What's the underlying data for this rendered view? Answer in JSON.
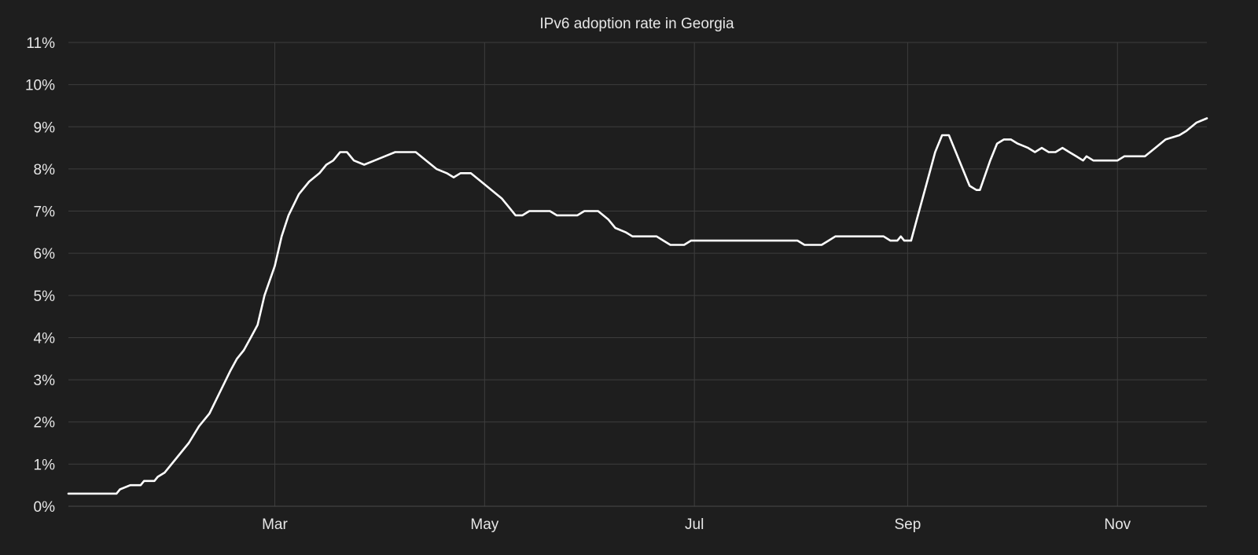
{
  "chart_data": {
    "type": "line",
    "title": "IPv6 adoption rate in Georgia",
    "xlabel": "",
    "ylabel": "",
    "grid": true,
    "legend": "none",
    "xlim": [
      "2024-01-01",
      "2024-11-27"
    ],
    "ylim": [
      0,
      11
    ],
    "x_ticks": [
      {
        "date": "2024-03-01",
        "label": "Mar"
      },
      {
        "date": "2024-05-01",
        "label": "May"
      },
      {
        "date": "2024-07-01",
        "label": "Jul"
      },
      {
        "date": "2024-09-01",
        "label": "Sep"
      },
      {
        "date": "2024-11-01",
        "label": "Nov"
      }
    ],
    "y_ticks": [
      {
        "value": 0,
        "label": "0%"
      },
      {
        "value": 1,
        "label": "1%"
      },
      {
        "value": 2,
        "label": "2%"
      },
      {
        "value": 3,
        "label": "3%"
      },
      {
        "value": 4,
        "label": "4%"
      },
      {
        "value": 5,
        "label": "5%"
      },
      {
        "value": 6,
        "label": "6%"
      },
      {
        "value": 7,
        "label": "7%"
      },
      {
        "value": 8,
        "label": "8%"
      },
      {
        "value": 9,
        "label": "9%"
      },
      {
        "value": 10,
        "label": "10%"
      },
      {
        "value": 11,
        "label": "11%"
      }
    ],
    "series": [
      {
        "color": "#ffffff",
        "points": [
          [
            "2024-01-01",
            0.3
          ],
          [
            "2024-01-15",
            0.3
          ],
          [
            "2024-01-16",
            0.4
          ],
          [
            "2024-01-19",
            0.5
          ],
          [
            "2024-01-22",
            0.5
          ],
          [
            "2024-01-23",
            0.6
          ],
          [
            "2024-01-26",
            0.6
          ],
          [
            "2024-01-27",
            0.7
          ],
          [
            "2024-01-29",
            0.8
          ],
          [
            "2024-02-01",
            1.1
          ],
          [
            "2024-02-05",
            1.5
          ],
          [
            "2024-02-08",
            1.9
          ],
          [
            "2024-02-11",
            2.2
          ],
          [
            "2024-02-14",
            2.7
          ],
          [
            "2024-02-17",
            3.2
          ],
          [
            "2024-02-19",
            3.5
          ],
          [
            "2024-02-21",
            3.7
          ],
          [
            "2024-02-23",
            4.0
          ],
          [
            "2024-02-25",
            4.3
          ],
          [
            "2024-02-27",
            5.0
          ],
          [
            "2024-03-01",
            5.7
          ],
          [
            "2024-03-03",
            6.4
          ],
          [
            "2024-03-05",
            6.9
          ],
          [
            "2024-03-08",
            7.4
          ],
          [
            "2024-03-11",
            7.7
          ],
          [
            "2024-03-14",
            7.9
          ],
          [
            "2024-03-16",
            8.1
          ],
          [
            "2024-03-18",
            8.2
          ],
          [
            "2024-03-20",
            8.4
          ],
          [
            "2024-03-22",
            8.4
          ],
          [
            "2024-03-24",
            8.2
          ],
          [
            "2024-03-27",
            8.1
          ],
          [
            "2024-03-30",
            8.2
          ],
          [
            "2024-04-02",
            8.3
          ],
          [
            "2024-04-05",
            8.4
          ],
          [
            "2024-04-11",
            8.4
          ],
          [
            "2024-04-14",
            8.2
          ],
          [
            "2024-04-17",
            8.0
          ],
          [
            "2024-04-20",
            7.9
          ],
          [
            "2024-04-22",
            7.8
          ],
          [
            "2024-04-24",
            7.9
          ],
          [
            "2024-04-27",
            7.9
          ],
          [
            "2024-04-30",
            7.7
          ],
          [
            "2024-05-03",
            7.5
          ],
          [
            "2024-05-06",
            7.3
          ],
          [
            "2024-05-08",
            7.1
          ],
          [
            "2024-05-10",
            6.9
          ],
          [
            "2024-05-12",
            6.9
          ],
          [
            "2024-05-14",
            7.0
          ],
          [
            "2024-05-20",
            7.0
          ],
          [
            "2024-05-22",
            6.9
          ],
          [
            "2024-05-28",
            6.9
          ],
          [
            "2024-05-30",
            7.0
          ],
          [
            "2024-06-03",
            7.0
          ],
          [
            "2024-06-06",
            6.8
          ],
          [
            "2024-06-08",
            6.6
          ],
          [
            "2024-06-11",
            6.5
          ],
          [
            "2024-06-13",
            6.4
          ],
          [
            "2024-06-20",
            6.4
          ],
          [
            "2024-06-22",
            6.3
          ],
          [
            "2024-06-24",
            6.2
          ],
          [
            "2024-06-28",
            6.2
          ],
          [
            "2024-06-30",
            6.3
          ],
          [
            "2024-07-31",
            6.3
          ],
          [
            "2024-08-02",
            6.2
          ],
          [
            "2024-08-07",
            6.2
          ],
          [
            "2024-08-09",
            6.3
          ],
          [
            "2024-08-11",
            6.4
          ],
          [
            "2024-08-25",
            6.4
          ],
          [
            "2024-08-27",
            6.3
          ],
          [
            "2024-08-29",
            6.3
          ],
          [
            "2024-08-30",
            6.4
          ],
          [
            "2024-08-31",
            6.3
          ],
          [
            "2024-09-02",
            6.3
          ],
          [
            "2024-09-04",
            6.9
          ],
          [
            "2024-09-07",
            7.8
          ],
          [
            "2024-09-09",
            8.4
          ],
          [
            "2024-09-11",
            8.8
          ],
          [
            "2024-09-13",
            8.8
          ],
          [
            "2024-09-15",
            8.4
          ],
          [
            "2024-09-17",
            8.0
          ],
          [
            "2024-09-19",
            7.6
          ],
          [
            "2024-09-21",
            7.5
          ],
          [
            "2024-09-22",
            7.5
          ],
          [
            "2024-09-25",
            8.2
          ],
          [
            "2024-09-27",
            8.6
          ],
          [
            "2024-09-29",
            8.7
          ],
          [
            "2024-10-01",
            8.7
          ],
          [
            "2024-10-03",
            8.6
          ],
          [
            "2024-10-06",
            8.5
          ],
          [
            "2024-10-08",
            8.4
          ],
          [
            "2024-10-10",
            8.5
          ],
          [
            "2024-10-12",
            8.4
          ],
          [
            "2024-10-14",
            8.4
          ],
          [
            "2024-10-16",
            8.5
          ],
          [
            "2024-10-18",
            8.4
          ],
          [
            "2024-10-20",
            8.3
          ],
          [
            "2024-10-22",
            8.2
          ],
          [
            "2024-10-23",
            8.3
          ],
          [
            "2024-10-25",
            8.2
          ],
          [
            "2024-11-01",
            8.2
          ],
          [
            "2024-11-03",
            8.3
          ],
          [
            "2024-11-09",
            8.3
          ],
          [
            "2024-11-12",
            8.5
          ],
          [
            "2024-11-15",
            8.7
          ],
          [
            "2024-11-19",
            8.8
          ],
          [
            "2024-11-21",
            8.9
          ],
          [
            "2024-11-24",
            9.1
          ],
          [
            "2024-11-27",
            9.2
          ]
        ]
      }
    ]
  }
}
